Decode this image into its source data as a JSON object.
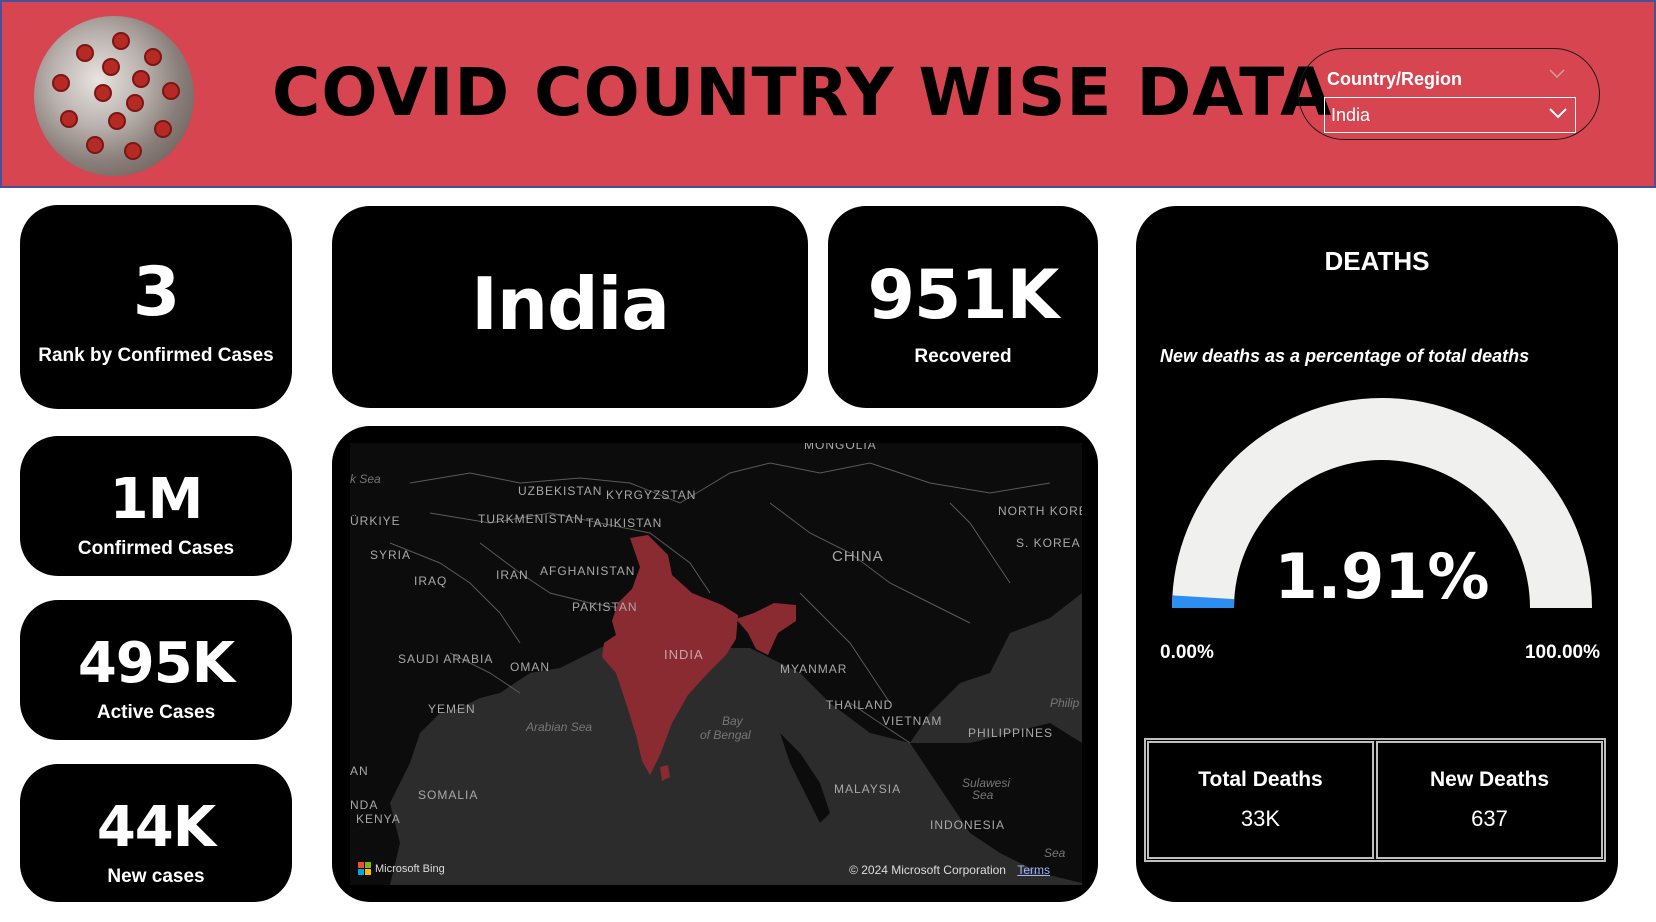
{
  "header": {
    "title": "COVID COUNTRY WISE DATA",
    "logo_icon": "coronavirus-icon",
    "bg_color": "#d64550"
  },
  "slicer": {
    "label": "Country/Region",
    "selected": "India"
  },
  "cards": {
    "rank": {
      "value": "3",
      "label": "Rank by Confirmed Cases"
    },
    "country": {
      "value": "India"
    },
    "recovered": {
      "value": "951K",
      "label": "Recovered"
    },
    "confirmed": {
      "value": "1M",
      "label": "Confirmed Cases"
    },
    "active": {
      "value": "495K",
      "label": "Active Cases"
    },
    "new_cases": {
      "value": "44K",
      "label": "New cases"
    }
  },
  "map": {
    "labels": {
      "mongolia": "MONGOLIA",
      "uzbekistan": "UZBEKISTAN",
      "kyrgyzstan": "KYRGYZSTAN",
      "turkiye": "ÜRKIYE",
      "turkmenistan": "TURKMENISTAN",
      "tajikistan": "TAJIKISTAN",
      "north_korea": "NORTH KORE",
      "s_korea": "S. KOREA",
      "syria": "SYRIA",
      "iraq": "IRAQ",
      "iran": "IRAN",
      "afghanistan": "AFGHANISTAN",
      "china": "CHINA",
      "pakistan": "PAKISTAN",
      "saudi_arabia": "SAUDI ARABIA",
      "oman": "OMAN",
      "india": "INDIA",
      "myanmar": "MYANMAR",
      "yemen": "YEMEN",
      "thailand": "THAILAND",
      "vietnam": "VIETNAM",
      "philippines": "PHILIPPINES",
      "somalia": "SOMALIA",
      "malaysia": "MALAYSIA",
      "indonesia": "INDONESIA",
      "kenya": "KENYA",
      "an": "AN",
      "nda": "NDA",
      "philip": "Philip",
      "k_sea": "k Sea",
      "arabian_sea": "Arabian Sea",
      "bay_1": "Bay",
      "bay_2": "of Bengal",
      "sulawesi_1": "Sulawesi",
      "sulawesi_2": "Sea",
      "sea": "Sea"
    },
    "highlight_color": "#8a2a31",
    "provider": "Microsoft Bing",
    "copyright": "© 2024 Microsoft Corporation",
    "terms": "Terms"
  },
  "deaths": {
    "title": "DEATHS",
    "gauge_subtitle": "New deaths as a percentage of total deaths",
    "gauge_value": "1.91%",
    "gauge_fraction": 0.0191,
    "gauge_min": "0.00%",
    "gauge_max": "100.00%",
    "fill_color": "#2c8ef0",
    "track_color": "#f0f0ee",
    "table": {
      "total_header": "Total Deaths",
      "total_value": "33K",
      "new_header": "New Deaths",
      "new_value": "637"
    }
  }
}
